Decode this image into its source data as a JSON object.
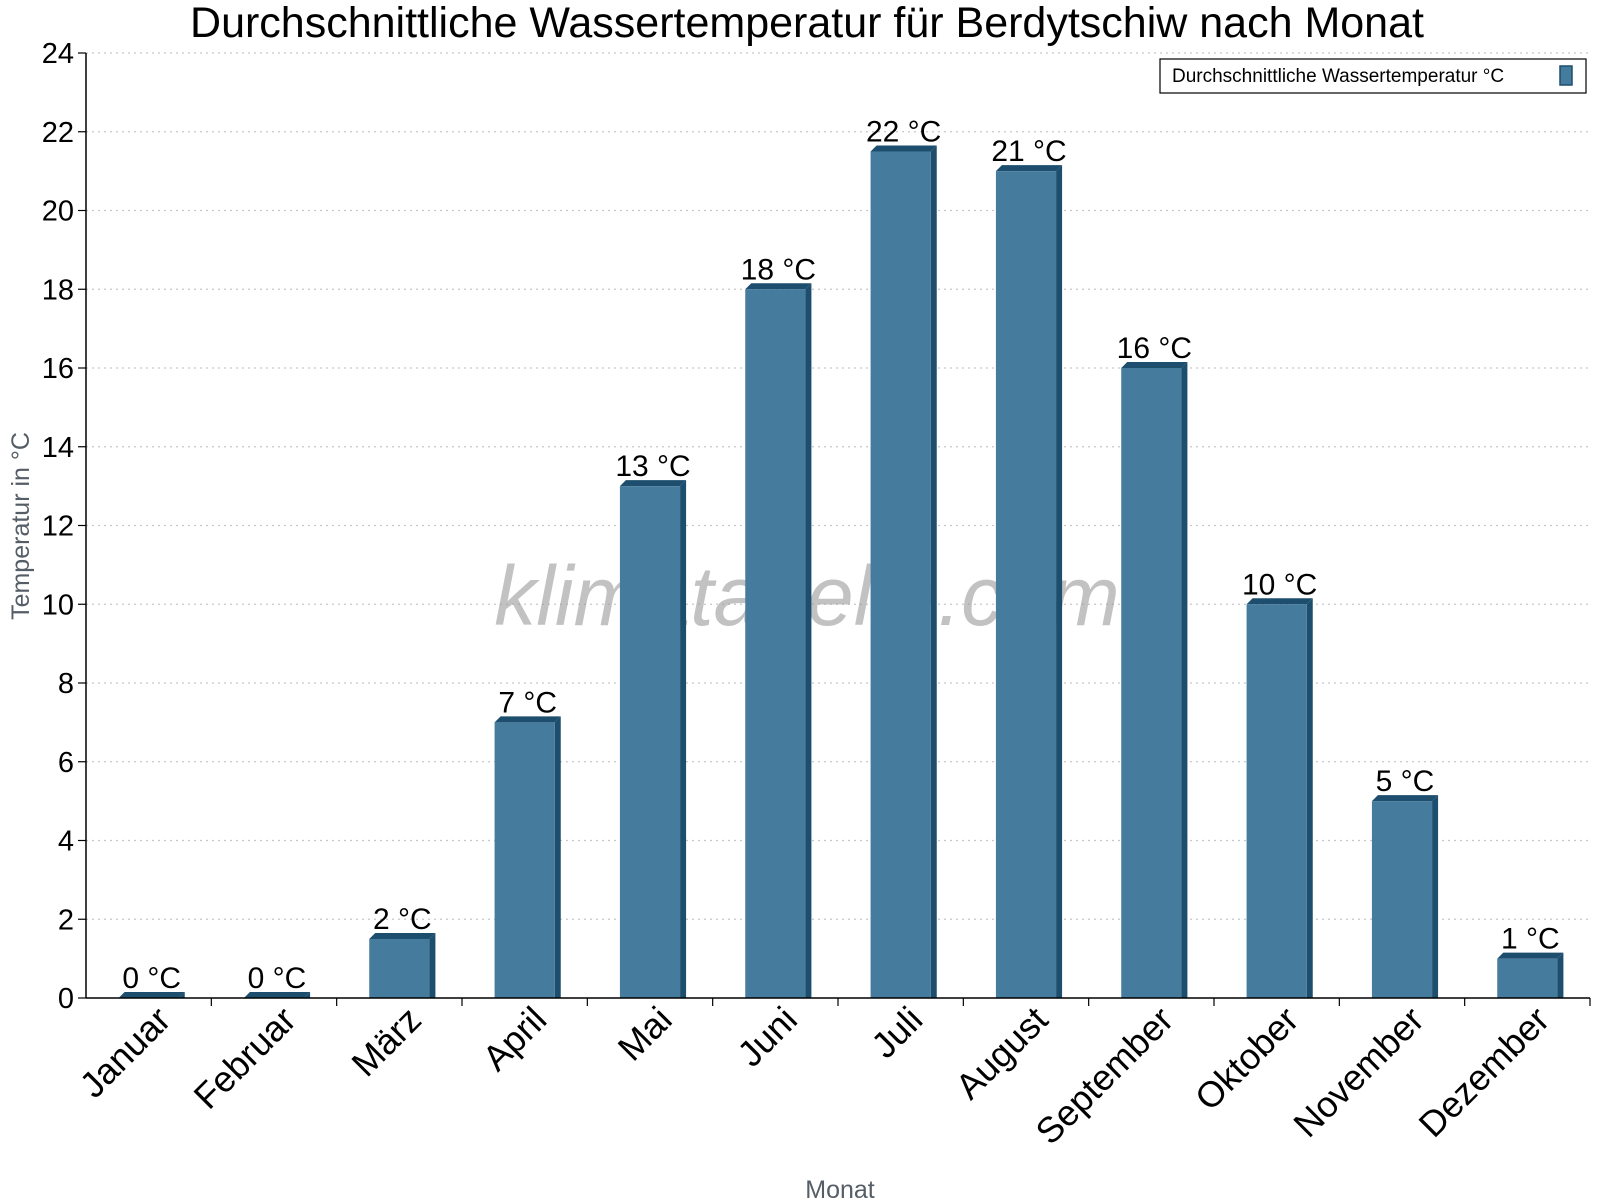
{
  "chart_data": {
    "type": "bar",
    "title": "Durchschnittliche Wassertemperatur für Berdytschiw nach Monat",
    "xlabel": "Monat",
    "ylabel": "Temperatur in °C",
    "categories": [
      "Januar",
      "Februar",
      "März",
      "April",
      "Mai",
      "Juni",
      "Juli",
      "August",
      "September",
      "Oktober",
      "November",
      "Dezember"
    ],
    "series": [
      {
        "name": "Durchschnittliche Wassertemperatur °C",
        "values": [
          0,
          0,
          1.5,
          7,
          13,
          18,
          21.5,
          21,
          16,
          10,
          5,
          1
        ],
        "labels": [
          "0 °C",
          "0 °C",
          "2 °C",
          "7 °C",
          "13 °C",
          "18 °C",
          "22 °C",
          "21 °C",
          "16 °C",
          "10 °C",
          "5 °C",
          "1 °C"
        ]
      }
    ],
    "ylim": [
      0,
      24
    ],
    "yticks": [
      0,
      2,
      4,
      6,
      8,
      10,
      12,
      14,
      16,
      18,
      20,
      22,
      24
    ],
    "grid": true,
    "legend_position": "top-right",
    "colors": {
      "bar": "#457b9d",
      "bar_dark": "#1d4e6d",
      "grid": "#c8c8c8"
    }
  },
  "watermark": "klimatabelle.com"
}
